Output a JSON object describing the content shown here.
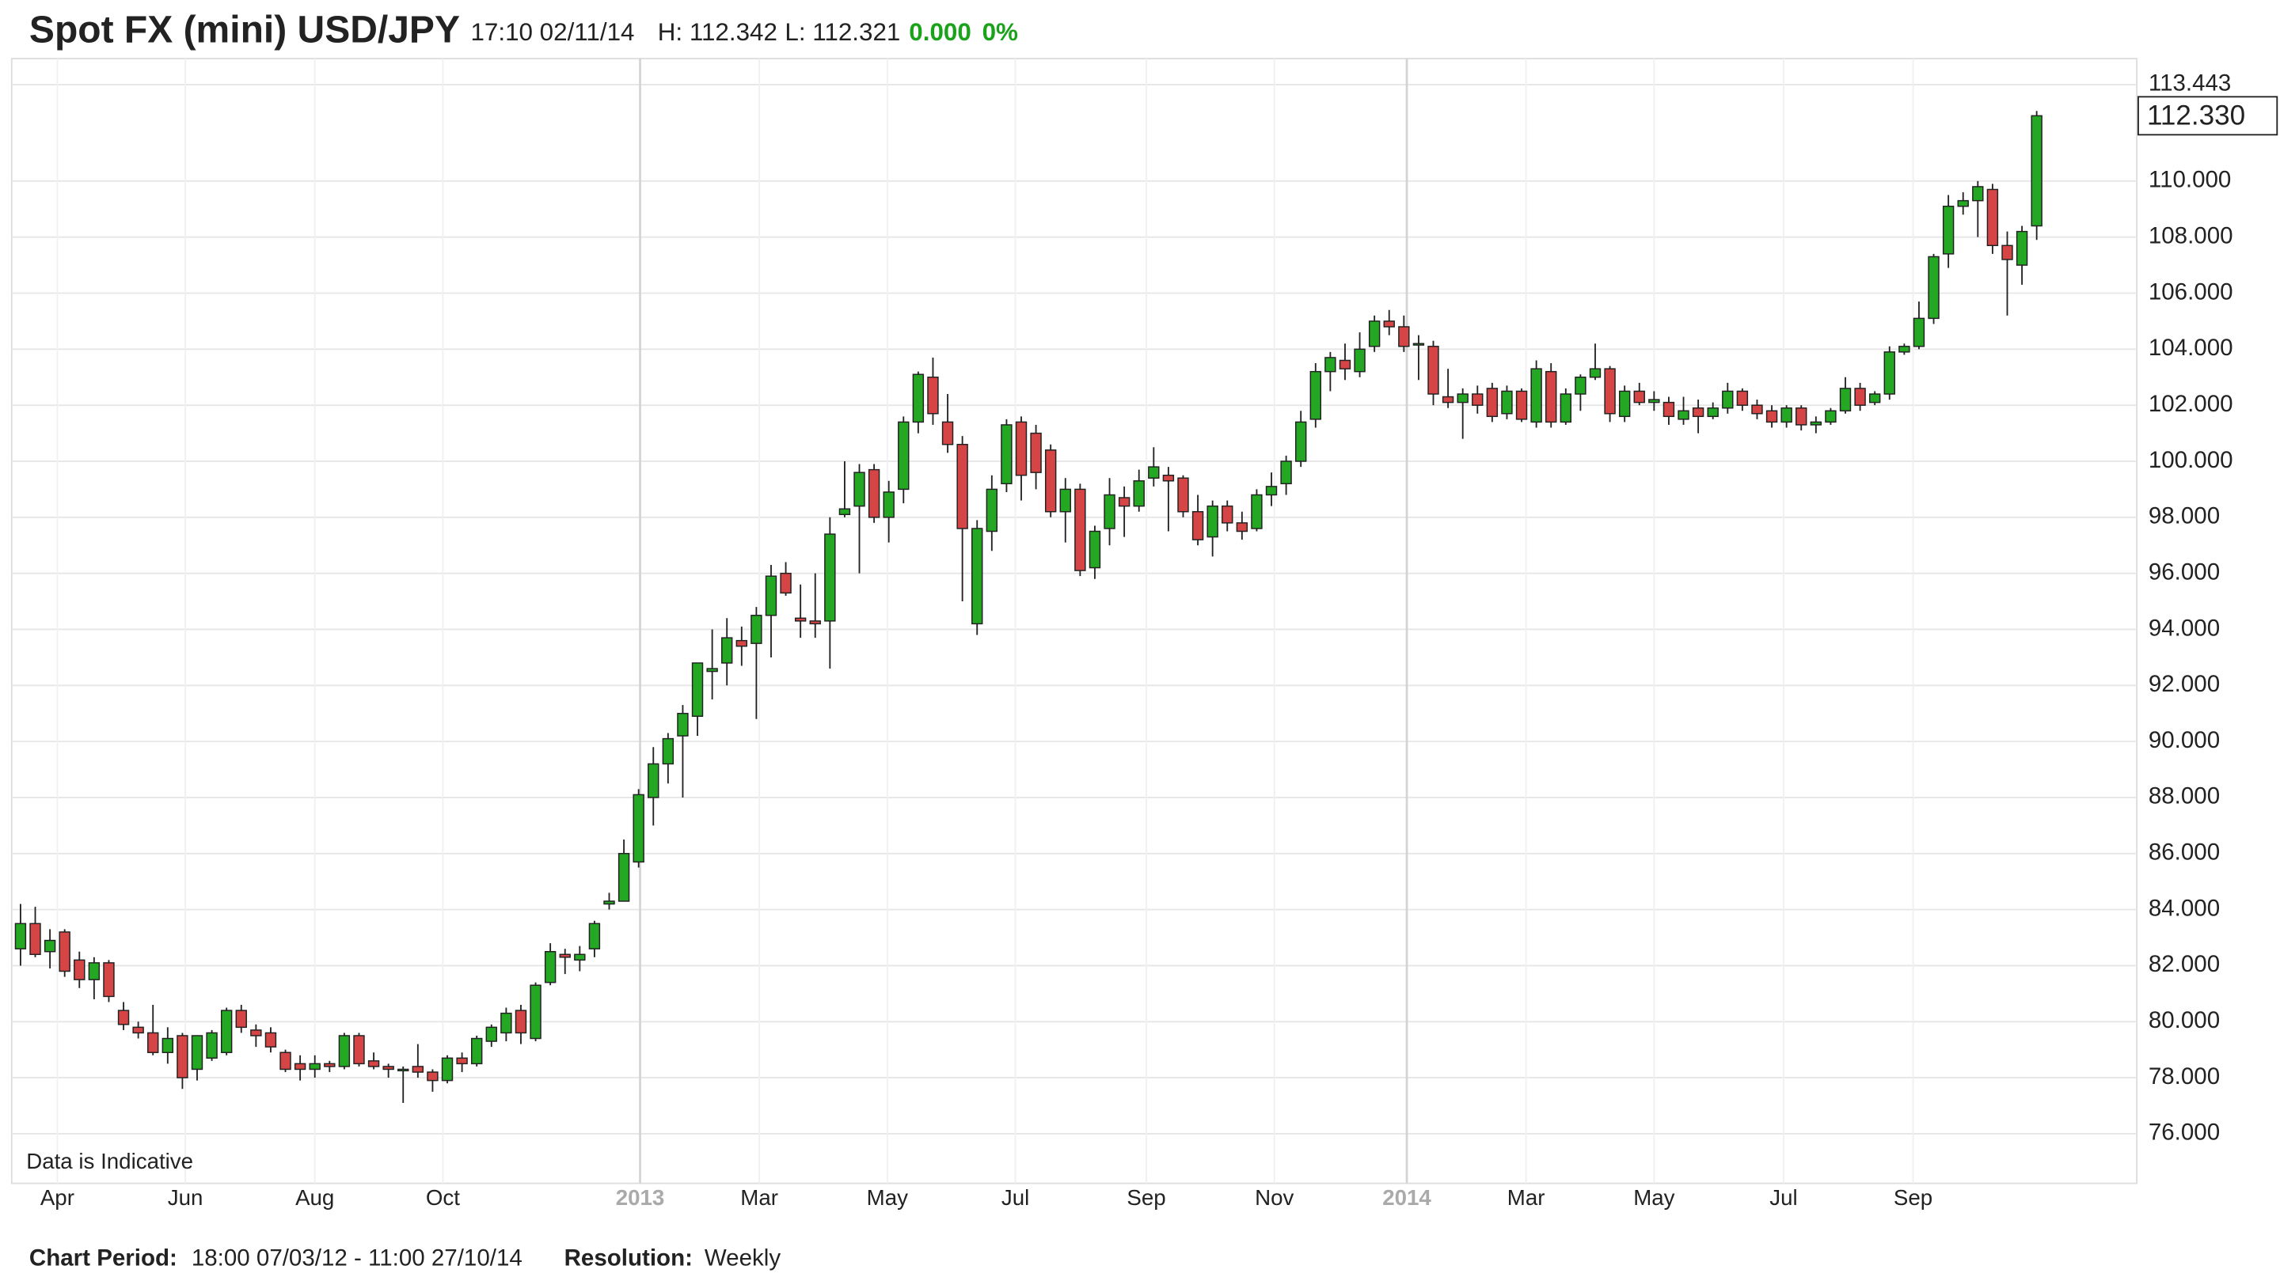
{
  "header": {
    "title": "Spot FX (mini) USD/JPY",
    "time": "17:10 02/11/14",
    "high": "H: 112.342",
    "low": "L: 112.321",
    "change": "0.000",
    "change_pct": "0%"
  },
  "chart_data": {
    "type": "candlestick",
    "note": "Data is Indicative",
    "last_price": {
      "value": 112.33,
      "label": "112.330"
    },
    "up_color": "#24a824",
    "down_color": "#d64545",
    "ylim": [
      74.23,
      114.37
    ],
    "yticks": [
      {
        "value": 76,
        "label": "76.000"
      },
      {
        "value": 78,
        "label": "78.000"
      },
      {
        "value": 80,
        "label": "80.000"
      },
      {
        "value": 82,
        "label": "82.000"
      },
      {
        "value": 84,
        "label": "84.000"
      },
      {
        "value": 86,
        "label": "86.000"
      },
      {
        "value": 88,
        "label": "88.000"
      },
      {
        "value": 90,
        "label": "90.000"
      },
      {
        "value": 92,
        "label": "92.000"
      },
      {
        "value": 94,
        "label": "94.000"
      },
      {
        "value": 96,
        "label": "96.000"
      },
      {
        "value": 98,
        "label": "98.000"
      },
      {
        "value": 100,
        "label": "100.000"
      },
      {
        "value": 102,
        "label": "102.000"
      },
      {
        "value": 104,
        "label": "104.000"
      },
      {
        "value": 106,
        "label": "106.000"
      },
      {
        "value": 108,
        "label": "108.000"
      },
      {
        "value": 110,
        "label": "110.000"
      },
      {
        "value": 113.443,
        "label": "113.443"
      }
    ],
    "xlim": [
      -0.6,
      143.8
    ],
    "xticks": [
      {
        "value": 2.5,
        "label": "Apr"
      },
      {
        "value": 11.2,
        "label": "Jun"
      },
      {
        "value": 20,
        "label": "Aug"
      },
      {
        "value": 28.7,
        "label": "Oct"
      },
      {
        "value": 42.1,
        "label": "2013"
      },
      {
        "value": 50.2,
        "label": "Mar"
      },
      {
        "value": 58.9,
        "label": "May"
      },
      {
        "value": 67.6,
        "label": "Jul"
      },
      {
        "value": 76.5,
        "label": "Sep"
      },
      {
        "value": 85.2,
        "label": "Nov"
      },
      {
        "value": 94.2,
        "label": "2014"
      },
      {
        "value": 102.3,
        "label": "Mar"
      },
      {
        "value": 111,
        "label": "May"
      },
      {
        "value": 119.8,
        "label": "Jul"
      },
      {
        "value": 128.6,
        "label": "Sep"
      }
    ],
    "year_ticks": [
      "2013",
      "2014"
    ],
    "grid": true,
    "candles": [
      {
        "open": 82.6,
        "high": 84.2,
        "low": 82.0,
        "close": 83.5
      },
      {
        "open": 83.5,
        "high": 84.1,
        "low": 82.3,
        "close": 82.4
      },
      {
        "open": 82.5,
        "high": 83.3,
        "low": 81.9,
        "close": 82.9
      },
      {
        "open": 83.2,
        "high": 83.3,
        "low": 81.6,
        "close": 81.8
      },
      {
        "open": 82.2,
        "high": 82.5,
        "low": 81.2,
        "close": 81.5
      },
      {
        "open": 81.5,
        "high": 82.3,
        "low": 80.8,
        "close": 82.1
      },
      {
        "open": 82.1,
        "high": 82.2,
        "low": 80.7,
        "close": 80.9
      },
      {
        "open": 80.4,
        "high": 80.7,
        "low": 79.7,
        "close": 79.9
      },
      {
        "open": 79.8,
        "high": 80.0,
        "low": 79.4,
        "close": 79.6
      },
      {
        "open": 79.6,
        "high": 80.6,
        "low": 78.8,
        "close": 78.9
      },
      {
        "open": 78.9,
        "high": 79.8,
        "low": 78.5,
        "close": 79.4
      },
      {
        "open": 79.5,
        "high": 79.6,
        "low": 77.6,
        "close": 78.0
      },
      {
        "open": 78.3,
        "high": 79.5,
        "low": 77.9,
        "close": 79.5
      },
      {
        "open": 78.7,
        "high": 79.7,
        "low": 78.6,
        "close": 79.6
      },
      {
        "open": 78.9,
        "high": 80.5,
        "low": 78.8,
        "close": 80.4
      },
      {
        "open": 80.4,
        "high": 80.6,
        "low": 79.6,
        "close": 79.8
      },
      {
        "open": 79.7,
        "high": 79.9,
        "low": 79.1,
        "close": 79.5
      },
      {
        "open": 79.6,
        "high": 79.8,
        "low": 78.9,
        "close": 79.1
      },
      {
        "open": 78.9,
        "high": 79.0,
        "low": 78.2,
        "close": 78.3
      },
      {
        "open": 78.5,
        "high": 78.8,
        "low": 77.9,
        "close": 78.3
      },
      {
        "open": 78.3,
        "high": 78.8,
        "low": 78.0,
        "close": 78.5
      },
      {
        "open": 78.5,
        "high": 78.6,
        "low": 78.2,
        "close": 78.4
      },
      {
        "open": 78.4,
        "high": 79.6,
        "low": 78.3,
        "close": 79.5
      },
      {
        "open": 79.5,
        "high": 79.6,
        "low": 78.4,
        "close": 78.5
      },
      {
        "open": 78.6,
        "high": 78.9,
        "low": 78.3,
        "close": 78.4
      },
      {
        "open": 78.4,
        "high": 78.5,
        "low": 78.0,
        "close": 78.3
      },
      {
        "open": 78.3,
        "high": 78.4,
        "low": 77.1,
        "close": 78.3
      },
      {
        "open": 78.4,
        "high": 79.2,
        "low": 78.0,
        "close": 78.2
      },
      {
        "open": 78.2,
        "high": 78.3,
        "low": 77.5,
        "close": 77.9
      },
      {
        "open": 77.9,
        "high": 78.8,
        "low": 77.8,
        "close": 78.7
      },
      {
        "open": 78.7,
        "high": 78.9,
        "low": 78.2,
        "close": 78.5
      },
      {
        "open": 78.5,
        "high": 79.5,
        "low": 78.4,
        "close": 79.4
      },
      {
        "open": 79.3,
        "high": 79.9,
        "low": 79.1,
        "close": 79.8
      },
      {
        "open": 79.6,
        "high": 80.5,
        "low": 79.3,
        "close": 80.3
      },
      {
        "open": 80.4,
        "high": 80.6,
        "low": 79.2,
        "close": 79.6
      },
      {
        "open": 79.4,
        "high": 81.4,
        "low": 79.3,
        "close": 81.3
      },
      {
        "open": 81.4,
        "high": 82.8,
        "low": 81.3,
        "close": 82.5
      },
      {
        "open": 82.4,
        "high": 82.6,
        "low": 81.7,
        "close": 82.3
      },
      {
        "open": 82.2,
        "high": 82.7,
        "low": 81.8,
        "close": 82.4
      },
      {
        "open": 82.6,
        "high": 83.6,
        "low": 82.3,
        "close": 83.5
      },
      {
        "open": 84.2,
        "high": 84.6,
        "low": 84.0,
        "close": 84.3
      },
      {
        "open": 84.3,
        "high": 86.5,
        "low": 84.3,
        "close": 86.0
      },
      {
        "open": 85.7,
        "high": 88.3,
        "low": 85.5,
        "close": 88.1
      },
      {
        "open": 88.0,
        "high": 89.8,
        "low": 87.0,
        "close": 89.2
      },
      {
        "open": 89.2,
        "high": 90.3,
        "low": 88.5,
        "close": 90.1
      },
      {
        "open": 90.2,
        "high": 91.3,
        "low": 88.0,
        "close": 91.0
      },
      {
        "open": 90.9,
        "high": 92.8,
        "low": 90.2,
        "close": 92.8
      },
      {
        "open": 92.5,
        "high": 94.0,
        "low": 91.5,
        "close": 92.6
      },
      {
        "open": 92.8,
        "high": 94.4,
        "low": 92.0,
        "close": 93.7
      },
      {
        "open": 93.6,
        "high": 94.1,
        "low": 92.7,
        "close": 93.4
      },
      {
        "open": 93.5,
        "high": 94.8,
        "low": 90.8,
        "close": 94.5
      },
      {
        "open": 94.5,
        "high": 96.3,
        "low": 93.0,
        "close": 95.9
      },
      {
        "open": 96.0,
        "high": 96.4,
        "low": 95.2,
        "close": 95.3
      },
      {
        "open": 94.4,
        "high": 95.6,
        "low": 93.7,
        "close": 94.3
      },
      {
        "open": 94.3,
        "high": 96.0,
        "low": 93.7,
        "close": 94.2
      },
      {
        "open": 94.3,
        "high": 98.0,
        "low": 92.6,
        "close": 97.4
      },
      {
        "open": 98.1,
        "high": 100.0,
        "low": 98.0,
        "close": 98.3
      },
      {
        "open": 98.4,
        "high": 99.9,
        "low": 96.0,
        "close": 99.6
      },
      {
        "open": 99.7,
        "high": 99.9,
        "low": 97.8,
        "close": 98.0
      },
      {
        "open": 98.0,
        "high": 99.3,
        "low": 97.1,
        "close": 98.9
      },
      {
        "open": 99.0,
        "high": 101.6,
        "low": 98.5,
        "close": 101.4
      },
      {
        "open": 101.4,
        "high": 103.2,
        "low": 101.0,
        "close": 103.1
      },
      {
        "open": 103.0,
        "high": 103.7,
        "low": 101.3,
        "close": 101.7
      },
      {
        "open": 101.4,
        "high": 102.4,
        "low": 100.3,
        "close": 100.6
      },
      {
        "open": 100.6,
        "high": 100.9,
        "low": 95.0,
        "close": 97.6
      },
      {
        "open": 94.2,
        "high": 97.9,
        "low": 93.8,
        "close": 97.6
      },
      {
        "open": 97.5,
        "high": 99.5,
        "low": 96.8,
        "close": 99.0
      },
      {
        "open": 99.2,
        "high": 101.5,
        "low": 98.9,
        "close": 101.3
      },
      {
        "open": 101.4,
        "high": 101.6,
        "low": 98.6,
        "close": 99.5
      },
      {
        "open": 101.0,
        "high": 101.3,
        "low": 99.0,
        "close": 99.6
      },
      {
        "open": 100.4,
        "high": 100.6,
        "low": 98.0,
        "close": 98.2
      },
      {
        "open": 98.2,
        "high": 99.4,
        "low": 97.1,
        "close": 99.0
      },
      {
        "open": 99.0,
        "high": 99.2,
        "low": 95.9,
        "close": 96.1
      },
      {
        "open": 96.2,
        "high": 97.7,
        "low": 95.8,
        "close": 97.5
      },
      {
        "open": 97.6,
        "high": 99.4,
        "low": 97.0,
        "close": 98.8
      },
      {
        "open": 98.7,
        "high": 99.1,
        "low": 97.3,
        "close": 98.4
      },
      {
        "open": 98.4,
        "high": 99.7,
        "low": 98.2,
        "close": 99.3
      },
      {
        "open": 99.4,
        "high": 100.5,
        "low": 99.1,
        "close": 99.8
      },
      {
        "open": 99.5,
        "high": 99.8,
        "low": 97.5,
        "close": 99.3
      },
      {
        "open": 99.4,
        "high": 99.5,
        "low": 98.0,
        "close": 98.2
      },
      {
        "open": 98.2,
        "high": 98.8,
        "low": 97.0,
        "close": 97.2
      },
      {
        "open": 97.3,
        "high": 98.6,
        "low": 96.6,
        "close": 98.4
      },
      {
        "open": 98.4,
        "high": 98.6,
        "low": 97.5,
        "close": 97.8
      },
      {
        "open": 97.8,
        "high": 98.2,
        "low": 97.2,
        "close": 97.5
      },
      {
        "open": 97.6,
        "high": 99.0,
        "low": 97.5,
        "close": 98.8
      },
      {
        "open": 98.8,
        "high": 99.6,
        "low": 98.4,
        "close": 99.1
      },
      {
        "open": 99.2,
        "high": 100.2,
        "low": 98.8,
        "close": 100.0
      },
      {
        "open": 100.0,
        "high": 101.8,
        "low": 99.8,
        "close": 101.4
      },
      {
        "open": 101.5,
        "high": 103.5,
        "low": 101.2,
        "close": 103.2
      },
      {
        "open": 103.2,
        "high": 103.9,
        "low": 102.5,
        "close": 103.7
      },
      {
        "open": 103.6,
        "high": 104.2,
        "low": 102.9,
        "close": 103.3
      },
      {
        "open": 103.2,
        "high": 104.6,
        "low": 103.0,
        "close": 104.0
      },
      {
        "open": 104.1,
        "high": 105.2,
        "low": 103.9,
        "close": 105.0
      },
      {
        "open": 105.0,
        "high": 105.4,
        "low": 104.5,
        "close": 104.8
      },
      {
        "open": 104.8,
        "high": 105.2,
        "low": 103.9,
        "close": 104.1
      },
      {
        "open": 104.2,
        "high": 104.5,
        "low": 102.9,
        "close": 104.2
      },
      {
        "open": 104.1,
        "high": 104.3,
        "low": 102.0,
        "close": 102.4
      },
      {
        "open": 102.3,
        "high": 103.3,
        "low": 101.9,
        "close": 102.1
      },
      {
        "open": 102.1,
        "high": 102.6,
        "low": 100.8,
        "close": 102.4
      },
      {
        "open": 102.4,
        "high": 102.7,
        "low": 101.7,
        "close": 102.0
      },
      {
        "open": 102.6,
        "high": 102.8,
        "low": 101.4,
        "close": 101.6
      },
      {
        "open": 101.7,
        "high": 102.7,
        "low": 101.5,
        "close": 102.5
      },
      {
        "open": 102.5,
        "high": 102.6,
        "low": 101.4,
        "close": 101.5
      },
      {
        "open": 101.4,
        "high": 103.6,
        "low": 101.2,
        "close": 103.3
      },
      {
        "open": 103.2,
        "high": 103.5,
        "low": 101.2,
        "close": 101.4
      },
      {
        "open": 101.4,
        "high": 102.6,
        "low": 101.3,
        "close": 102.4
      },
      {
        "open": 102.4,
        "high": 103.1,
        "low": 101.8,
        "close": 103.0
      },
      {
        "open": 103.0,
        "high": 104.2,
        "low": 102.9,
        "close": 103.3
      },
      {
        "open": 103.3,
        "high": 103.4,
        "low": 101.4,
        "close": 101.7
      },
      {
        "open": 101.6,
        "high": 102.7,
        "low": 101.4,
        "close": 102.5
      },
      {
        "open": 102.5,
        "high": 102.8,
        "low": 102.0,
        "close": 102.1
      },
      {
        "open": 102.1,
        "high": 102.5,
        "low": 101.8,
        "close": 102.2
      },
      {
        "open": 102.1,
        "high": 102.3,
        "low": 101.3,
        "close": 101.6
      },
      {
        "open": 101.5,
        "high": 102.3,
        "low": 101.3,
        "close": 101.8
      },
      {
        "open": 101.9,
        "high": 102.2,
        "low": 101.0,
        "close": 101.6
      },
      {
        "open": 101.6,
        "high": 102.1,
        "low": 101.5,
        "close": 101.9
      },
      {
        "open": 101.9,
        "high": 102.8,
        "low": 101.7,
        "close": 102.5
      },
      {
        "open": 102.5,
        "high": 102.6,
        "low": 101.8,
        "close": 102.0
      },
      {
        "open": 102.0,
        "high": 102.2,
        "low": 101.5,
        "close": 101.7
      },
      {
        "open": 101.8,
        "high": 102.0,
        "low": 101.2,
        "close": 101.4
      },
      {
        "open": 101.4,
        "high": 102.0,
        "low": 101.2,
        "close": 101.9
      },
      {
        "open": 101.9,
        "high": 102.0,
        "low": 101.1,
        "close": 101.3
      },
      {
        "open": 101.3,
        "high": 101.6,
        "low": 101.0,
        "close": 101.4
      },
      {
        "open": 101.4,
        "high": 101.9,
        "low": 101.3,
        "close": 101.8
      },
      {
        "open": 101.8,
        "high": 103.0,
        "low": 101.7,
        "close": 102.6
      },
      {
        "open": 102.6,
        "high": 102.8,
        "low": 101.8,
        "close": 102.0
      },
      {
        "open": 102.1,
        "high": 102.5,
        "low": 102.0,
        "close": 102.4
      },
      {
        "open": 102.4,
        "high": 104.1,
        "low": 102.2,
        "close": 103.9
      },
      {
        "open": 103.9,
        "high": 104.2,
        "low": 103.8,
        "close": 104.1
      },
      {
        "open": 104.1,
        "high": 105.7,
        "low": 104.0,
        "close": 105.1
      },
      {
        "open": 105.1,
        "high": 107.4,
        "low": 104.9,
        "close": 107.3
      },
      {
        "open": 107.4,
        "high": 109.5,
        "low": 106.9,
        "close": 109.1
      },
      {
        "open": 109.1,
        "high": 109.6,
        "low": 108.8,
        "close": 109.3
      },
      {
        "open": 109.3,
        "high": 110.0,
        "low": 108.0,
        "close": 109.8
      },
      {
        "open": 109.7,
        "high": 109.9,
        "low": 107.4,
        "close": 107.7
      },
      {
        "open": 107.7,
        "high": 108.2,
        "low": 105.2,
        "close": 107.2
      },
      {
        "open": 107.0,
        "high": 108.4,
        "low": 106.3,
        "close": 108.2
      },
      {
        "open": 108.4,
        "high": 112.5,
        "low": 107.9,
        "close": 112.33
      }
    ]
  },
  "footer": {
    "period_label": "Chart Period:",
    "period": "18:00 07/03/12 - 11:00 27/10/14",
    "resolution_label": "Resolution:",
    "resolution": "Weekly"
  }
}
